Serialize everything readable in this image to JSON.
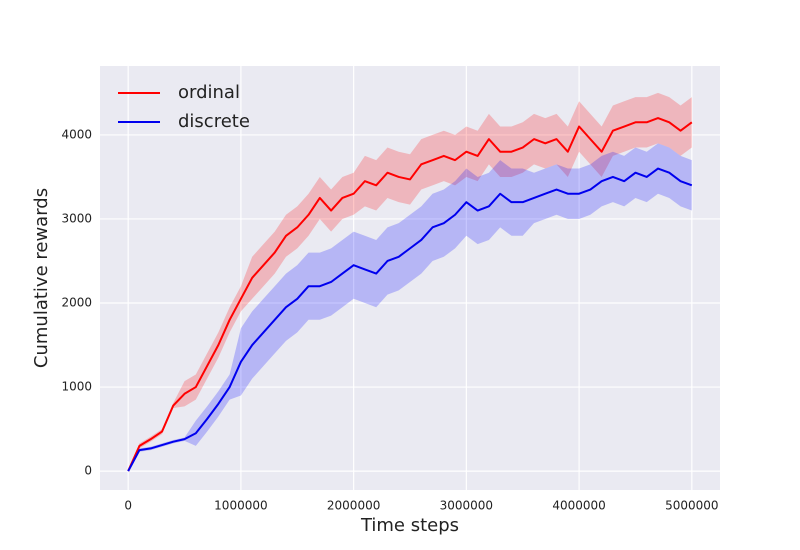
{
  "chart_data": {
    "type": "line",
    "xlabel": "Time steps",
    "ylabel": "Cumulative rewards",
    "x": [
      0,
      100000,
      200000,
      300000,
      400000,
      500000,
      600000,
      700000,
      800000,
      900000,
      1000000,
      1100000,
      1200000,
      1300000,
      1400000,
      1500000,
      1600000,
      1700000,
      1800000,
      1900000,
      2000000,
      2100000,
      2200000,
      2300000,
      2400000,
      2500000,
      2600000,
      2700000,
      2800000,
      2900000,
      3000000,
      3100000,
      3200000,
      3300000,
      3400000,
      3500000,
      3600000,
      3700000,
      3800000,
      3900000,
      4000000,
      4100000,
      4200000,
      4300000,
      4400000,
      4500000,
      4600000,
      4700000,
      4800000,
      4900000,
      5000000
    ],
    "series": [
      {
        "name": "ordinal",
        "color": "#ff0000",
        "band_color": "#ff0000",
        "values": [
          0,
          300,
          380,
          470,
          780,
          920,
          1000,
          1250,
          1500,
          1800,
          2050,
          2300,
          2450,
          2600,
          2800,
          2900,
          3050,
          3250,
          3100,
          3250,
          3300,
          3450,
          3400,
          3550,
          3500,
          3470,
          3650,
          3700,
          3750,
          3700,
          3800,
          3750,
          3950,
          3800,
          3800,
          3850,
          3950,
          3900,
          3950,
          3800,
          4100,
          3950,
          3800,
          4050,
          4100,
          4150,
          4150,
          4200,
          4150,
          4050,
          4150
        ],
        "lower": [
          0,
          270,
          350,
          440,
          750,
          770,
          850,
          1100,
          1350,
          1650,
          1900,
          2050,
          2200,
          2350,
          2550,
          2650,
          2800,
          3000,
          2850,
          3000,
          3050,
          3150,
          3100,
          3250,
          3200,
          3170,
          3350,
          3400,
          3450,
          3400,
          3500,
          3450,
          3650,
          3500,
          3500,
          3550,
          3650,
          3600,
          3650,
          3500,
          3800,
          3650,
          3500,
          3750,
          3800,
          3850,
          3850,
          3900,
          3850,
          3750,
          3850
        ],
        "upper": [
          0,
          330,
          410,
          500,
          810,
          1070,
          1150,
          1400,
          1650,
          1950,
          2200,
          2550,
          2700,
          2850,
          3050,
          3150,
          3300,
          3500,
          3350,
          3500,
          3550,
          3750,
          3700,
          3850,
          3800,
          3770,
          3950,
          4000,
          4050,
          4000,
          4100,
          4050,
          4250,
          4100,
          4100,
          4150,
          4250,
          4200,
          4250,
          4100,
          4400,
          4250,
          4100,
          4350,
          4400,
          4450,
          4450,
          4500,
          4450,
          4350,
          4450
        ]
      },
      {
        "name": "discrete",
        "color": "#0000ee",
        "band_color": "#0000ff",
        "values": [
          0,
          250,
          270,
          310,
          350,
          380,
          450,
          620,
          800,
          1000,
          1300,
          1500,
          1650,
          1800,
          1950,
          2050,
          2200,
          2200,
          2250,
          2350,
          2450,
          2400,
          2350,
          2500,
          2550,
          2650,
          2750,
          2900,
          2950,
          3050,
          3200,
          3100,
          3150,
          3300,
          3200,
          3200,
          3250,
          3300,
          3350,
          3300,
          3300,
          3350,
          3450,
          3500,
          3450,
          3550,
          3500,
          3600,
          3550,
          3450,
          3400
        ],
        "lower": [
          0,
          230,
          250,
          290,
          330,
          360,
          300,
          470,
          650,
          850,
          900,
          1100,
          1250,
          1400,
          1550,
          1650,
          1800,
          1800,
          1850,
          1950,
          2050,
          2000,
          1950,
          2100,
          2150,
          2250,
          2350,
          2500,
          2550,
          2650,
          2800,
          2700,
          2750,
          2900,
          2800,
          2800,
          2950,
          3000,
          3050,
          3000,
          3000,
          3050,
          3150,
          3200,
          3150,
          3250,
          3200,
          3300,
          3250,
          3150,
          3100
        ],
        "upper": [
          0,
          270,
          290,
          330,
          370,
          400,
          600,
          770,
          950,
          1150,
          1700,
          1900,
          2050,
          2200,
          2350,
          2450,
          2600,
          2600,
          2650,
          2750,
          2850,
          2800,
          2750,
          2900,
          2950,
          3050,
          3150,
          3300,
          3350,
          3450,
          3600,
          3500,
          3550,
          3700,
          3600,
          3600,
          3550,
          3600,
          3650,
          3600,
          3600,
          3650,
          3750,
          3800,
          3750,
          3850,
          3800,
          3900,
          3850,
          3750,
          3700
        ]
      }
    ],
    "xlim": [
      -250000,
      5250000
    ],
    "xticks": [
      0,
      1000000,
      2000000,
      3000000,
      4000000,
      5000000
    ],
    "ylim": [
      -225,
      4820
    ],
    "yticks": [
      0,
      1000,
      2000,
      3000,
      4000
    ],
    "grid": true,
    "legend": "upper left"
  }
}
